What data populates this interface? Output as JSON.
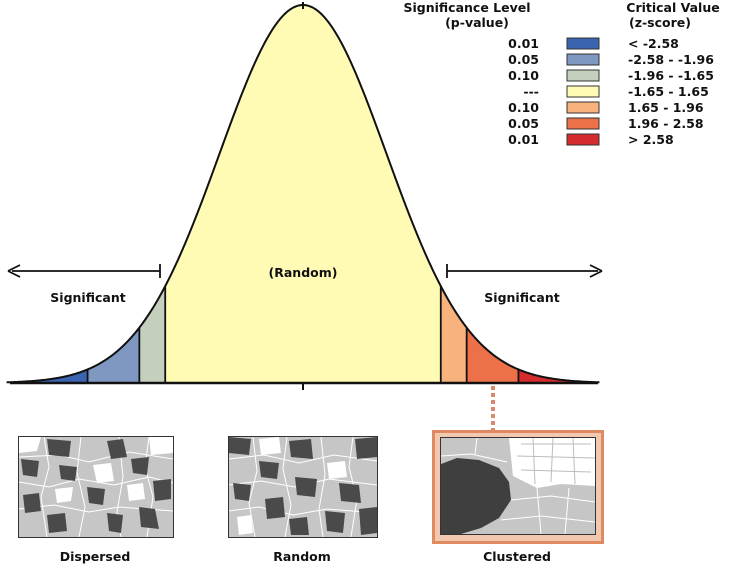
{
  "legend": {
    "sig_header_line1": "Significance Level",
    "sig_header_line2": "(p-value)",
    "crit_header_line1": "Critical Value",
    "crit_header_line2": "(z-score)",
    "rows": [
      {
        "p": "0.01",
        "z": "< -2.58",
        "color": "#3a64b0"
      },
      {
        "p": "0.05",
        "z": "-2.58 - -1.96",
        "color": "#7f98c2"
      },
      {
        "p": "0.10",
        "z": "-1.96 - -1.65",
        "color": "#c5cfbd"
      },
      {
        "p": "---",
        "z": "-1.65 - 1.65",
        "color": "#fffbb5"
      },
      {
        "p": "0.10",
        "z": "1.65 - 1.96",
        "color": "#f7b27e"
      },
      {
        "p": "0.05",
        "z": "1.96 - 2.58",
        "color": "#ec7048"
      },
      {
        "p": "0.01",
        "z": "> 2.58",
        "color": "#d42c2c"
      }
    ]
  },
  "curve": {
    "center_label": "(Random)",
    "left_label": "Significant",
    "right_label": "Significant",
    "regions": [
      {
        "from": -3.5,
        "to": -2.58,
        "color": "#3a64b0"
      },
      {
        "from": -2.58,
        "to": -1.96,
        "color": "#7f98c2"
      },
      {
        "from": -1.96,
        "to": -1.65,
        "color": "#c5cfbd"
      },
      {
        "from": -1.65,
        "to": 1.65,
        "color": "#fffbb5"
      },
      {
        "from": 1.65,
        "to": 1.96,
        "color": "#f7b27e"
      },
      {
        "from": 1.96,
        "to": 2.58,
        "color": "#ec7048"
      },
      {
        "from": 2.58,
        "to": 3.5,
        "color": "#d42c2c"
      }
    ]
  },
  "maps": {
    "dispersed": "Dispersed",
    "random": "Random",
    "clustered": "Clustered"
  }
}
